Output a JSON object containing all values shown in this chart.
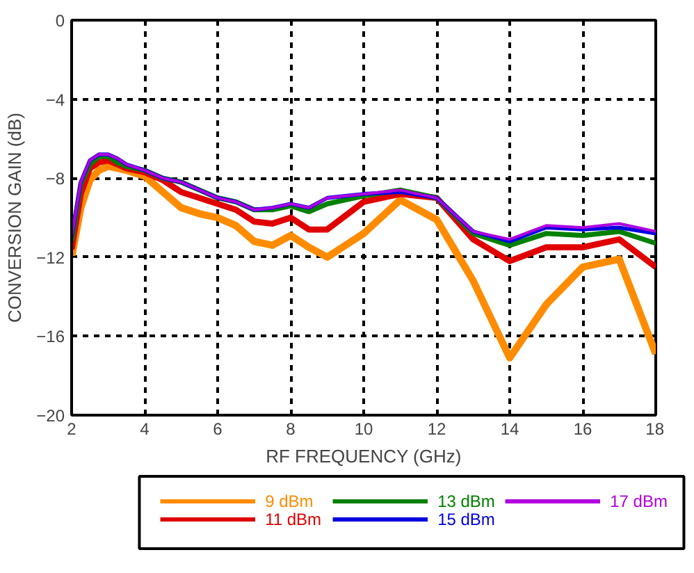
{
  "chart_data": {
    "type": "line",
    "xlabel": "RF FREQUENCY (GHz)",
    "ylabel": "CONVERSION GAIN (dB)",
    "x": [
      2,
      2.25,
      2.5,
      2.75,
      3,
      3.25,
      3.5,
      4,
      4.5,
      5,
      5.5,
      6,
      6.5,
      7,
      7.5,
      8,
      8.5,
      9,
      10,
      11,
      12,
      13,
      14,
      15,
      16,
      17,
      18
    ],
    "series": [
      {
        "name": "9 dBm",
        "color": "#ff8c00",
        "values": [
          -12,
          -9.5,
          -8.1,
          -7.6,
          -7.4,
          -7.5,
          -7.6,
          -7.9,
          -8.7,
          -9.5,
          -9.8,
          -10.0,
          -10.4,
          -11.2,
          -11.4,
          -10.9,
          -11.5,
          -12.0,
          -10.8,
          -9.1,
          -10.1,
          -13.2,
          -17.1,
          -14.4,
          -12.5,
          -12.1,
          -16.9
        ]
      },
      {
        "name": "11 dBm",
        "color": "#e00000",
        "values": [
          -11.6,
          -8.8,
          -7.5,
          -7.2,
          -7.1,
          -7.3,
          -7.5,
          -7.7,
          -8.1,
          -8.7,
          -9.0,
          -9.3,
          -9.6,
          -10.2,
          -10.3,
          -10.0,
          -10.6,
          -10.6,
          -9.2,
          -8.8,
          -9.0,
          -11.1,
          -12.2,
          -11.5,
          -11.5,
          -11.1,
          -12.5
        ]
      },
      {
        "name": "13 dBm",
        "color": "#008000",
        "values": [
          -11.2,
          -8.3,
          -7.3,
          -6.9,
          -6.9,
          -7.2,
          -7.4,
          -7.6,
          -8.0,
          -8.2,
          -8.6,
          -9.0,
          -9.2,
          -9.6,
          -9.6,
          -9.4,
          -9.7,
          -9.3,
          -8.9,
          -8.6,
          -9.0,
          -10.8,
          -11.4,
          -10.8,
          -10.9,
          -10.7,
          -11.3
        ]
      },
      {
        "name": "15 dBm",
        "color": "#0000e0",
        "values": [
          -11,
          -8.2,
          -7.1,
          -6.8,
          -6.8,
          -7.0,
          -7.3,
          -7.6,
          -8.0,
          -8.2,
          -8.6,
          -9.0,
          -9.2,
          -9.6,
          -9.5,
          -9.3,
          -9.5,
          -9.0,
          -8.8,
          -8.7,
          -9.0,
          -10.7,
          -11.2,
          -10.5,
          -10.6,
          -10.5,
          -10.8
        ]
      },
      {
        "name": "17 dBm",
        "color": "#b000e0",
        "values": [
          -11,
          -8.2,
          -7.1,
          -6.8,
          -6.8,
          -7.0,
          -7.3,
          -7.6,
          -8.0,
          -8.2,
          -8.6,
          -9.0,
          -9.2,
          -9.6,
          -9.5,
          -9.3,
          -9.5,
          -9.0,
          -8.8,
          -8.6,
          -9.0,
          -10.7,
          -11.1,
          -10.4,
          -10.5,
          -10.3,
          -10.7
        ]
      }
    ],
    "xlim": [
      2,
      18
    ],
    "ylim": [
      -20,
      0
    ],
    "xticks": [
      2,
      4,
      6,
      8,
      10,
      12,
      14,
      16,
      18
    ],
    "yticks": [
      -20,
      -16,
      -12,
      -8,
      -4,
      0
    ],
    "grid": true,
    "legend": "bottom",
    "line_style": "solid"
  }
}
